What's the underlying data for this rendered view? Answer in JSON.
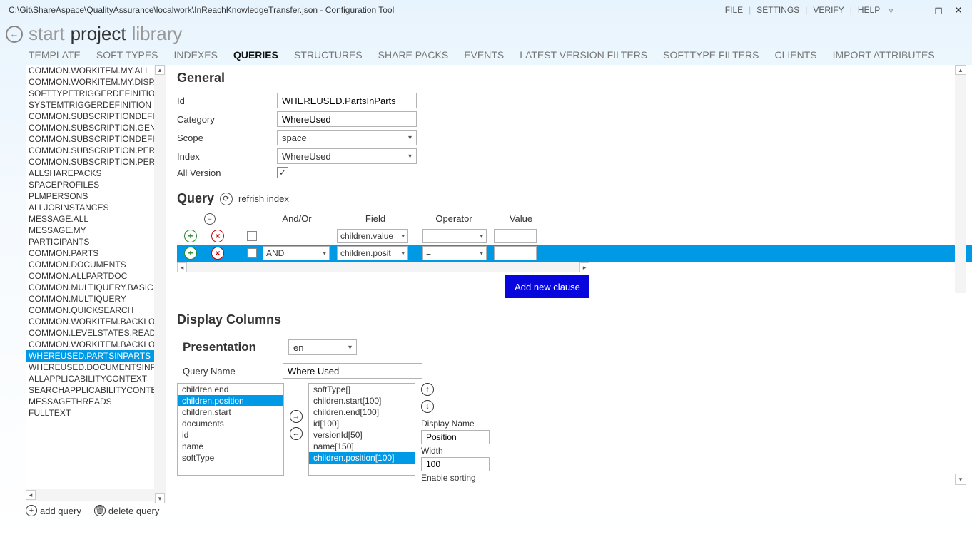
{
  "window": {
    "title": "C:\\Git\\ShareAspace\\QualityAssurance\\localwork\\InReachKnowledgeTransfer.json - Configuration Tool",
    "menu": {
      "file": "FILE",
      "settings": "SETTINGS",
      "verify": "VERIFY",
      "help": "HELP"
    }
  },
  "breadcrumb": {
    "start": "start",
    "project": "project",
    "library": "library"
  },
  "tabs": {
    "template": "TEMPLATE",
    "softtypes": "SOFT TYPES",
    "indexes": "INDEXES",
    "queries": "QUERIES",
    "structures": "STRUCTURES",
    "sharepacks": "SHARE PACKS",
    "events": "EVENTS",
    "latestversion": "LATEST VERSION FILTERS",
    "softtypefilters": "SOFTTYPE FILTERS",
    "clients": "CLIENTS",
    "importattrs": "IMPORT ATTRIBUTES",
    "active": "queries"
  },
  "sidebar": {
    "items": [
      "COMMON.WORKITEM.MY.ALL",
      "COMMON.WORKITEM.MY.DISPATCH",
      "SOFTTYPETRIGGERDEFINITION",
      "SYSTEMTRIGGERDEFINITION",
      "COMMON.SUBSCRIPTIONDEFINITION",
      "COMMON.SUBSCRIPTION.GENERAL",
      "COMMON.SUBSCRIPTIONDEFINITION",
      "COMMON.SUBSCRIPTION.PERSONAL",
      "COMMON.SUBSCRIPTION.PERSONAL",
      "ALLSHAREPACKS",
      "SPACEPROFILES",
      "PLMPERSONS",
      "ALLJOBINSTANCES",
      "MESSAGE.ALL",
      "MESSAGE.MY",
      "PARTICIPANTS",
      "COMMON.PARTS",
      "COMMON.DOCUMENTS",
      "COMMON.ALLPARTDOC",
      "COMMON.MULTIQUERY.BASIC",
      "COMMON.MULTIQUERY",
      "COMMON.QUICKSEARCH",
      "COMMON.WORKITEM.BACKLOG.ALL",
      "COMMON.LEVELSTATES.READYTO",
      "COMMON.WORKITEM.BACKLOG.OPEN",
      "WHEREUSED.PARTSINPARTS",
      "WHEREUSED.DOCUMENTSINPARTS",
      "ALLAPPLICABILITYCONTEXT",
      "SEARCHAPPLICABILITYCONTEXT",
      "MESSAGETHREADS",
      "FULLTEXT"
    ],
    "selected": "WHEREUSED.PARTSINPARTS",
    "actions": {
      "add": "add query",
      "delete": "delete query"
    }
  },
  "general": {
    "heading": "General",
    "labels": {
      "id": "Id",
      "category": "Category",
      "scope": "Scope",
      "index": "Index",
      "allversion": "All Version"
    },
    "id": "WHEREUSED.PartsInParts",
    "category": "WhereUsed",
    "scope": "space",
    "index": "WhereUsed",
    "allversion": true
  },
  "query": {
    "heading": "Query",
    "refresh_label": "refrish index",
    "headers": {
      "andor": "And/Or",
      "field": "Field",
      "operator": "Operator",
      "value": "Value"
    },
    "rows": [
      {
        "andor": "",
        "field": "children.value",
        "op": "=",
        "val": "",
        "selected": false
      },
      {
        "andor": "AND",
        "field": "children.posit",
        "op": "=",
        "val": "",
        "selected": true
      }
    ],
    "add_clause": "Add new clause"
  },
  "display": {
    "heading": "Display Columns",
    "presentation": "Presentation",
    "lang": "en",
    "queryname_label": "Query Name",
    "queryname": "Where Used",
    "available": [
      "children.end",
      "children.position",
      "children.start",
      "documents",
      "id",
      "name",
      "softType"
    ],
    "available_selected": "children.position",
    "chosen": [
      "softType[]",
      "children.start[100]",
      "children.end[100]",
      "id[100]",
      "versionId[50]",
      "name[150]",
      "children.position[100]"
    ],
    "chosen_selected": "children.position[100]",
    "props": {
      "displayname_label": "Display Name",
      "displayname": "Position",
      "width_label": "Width",
      "width": "100",
      "enablesort_label": "Enable sorting"
    }
  }
}
